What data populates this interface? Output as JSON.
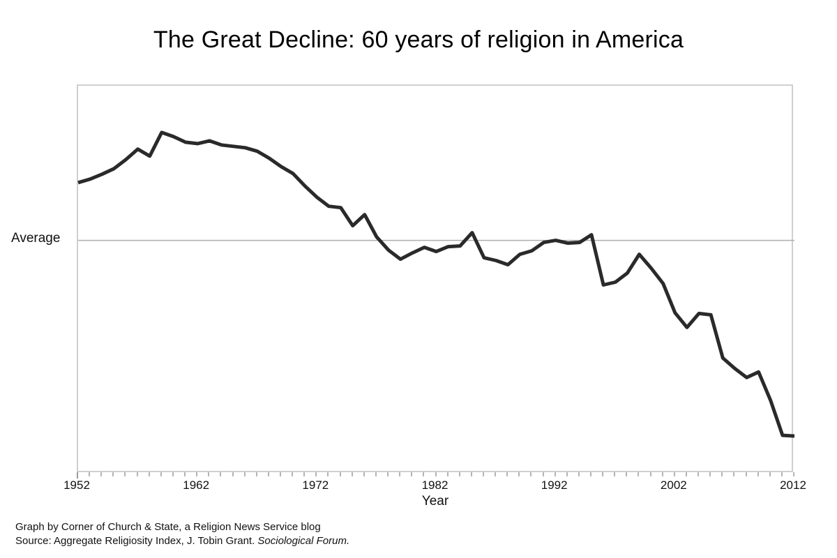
{
  "title": "The Great Decline: 60 years of religion in America",
  "axis": {
    "x_title": "Year",
    "average_label": "Average"
  },
  "footer": {
    "line1": "Graph by Corner of Church & State, a Religion News Service blog",
    "line2_prefix": "Source: Aggregate Religiosity Index, J. Tobin Grant. ",
    "line2_italic": "Sociological Forum."
  },
  "colors": {
    "line": "#2a2a2a",
    "gridline": "#aeaeae",
    "plot_border": "#cfcfcf",
    "tick": "#b4b4b4"
  },
  "chart_data": {
    "type": "line",
    "title": "The Great Decline: 60 years of religion in America",
    "xlabel": "Year",
    "ylabel": "",
    "annotation": "Average (horizontal reference gridline at value 0)",
    "legend": "none",
    "grid": "single horizontal average line only",
    "xlim": [
      1952,
      2012
    ],
    "ylim": [
      -3.35,
      2.22
    ],
    "x_ticks": [
      1952,
      1962,
      1972,
      1982,
      1992,
      2002,
      2012
    ],
    "minor_ticks_every_years": 1,
    "average_value": 0,
    "series": [
      {
        "name": "Aggregate Religiosity Index (deviation from average)",
        "x": [
          1952,
          1953,
          1954,
          1955,
          1956,
          1957,
          1958,
          1959,
          1960,
          1961,
          1962,
          1963,
          1964,
          1965,
          1966,
          1967,
          1968,
          1969,
          1970,
          1971,
          1972,
          1973,
          1974,
          1975,
          1976,
          1977,
          1978,
          1979,
          1980,
          1981,
          1982,
          1983,
          1984,
          1985,
          1986,
          1987,
          1988,
          1989,
          1990,
          1991,
          1992,
          1993,
          1994,
          1995,
          1996,
          1997,
          1998,
          1999,
          2000,
          2001,
          2002,
          2003,
          2004,
          2005,
          2006,
          2007,
          2008,
          2009,
          2010,
          2011,
          2012
        ],
        "values": [
          0.83,
          0.88,
          0.95,
          1.03,
          1.16,
          1.31,
          1.21,
          1.55,
          1.49,
          1.41,
          1.39,
          1.43,
          1.37,
          1.35,
          1.33,
          1.28,
          1.18,
          1.06,
          0.96,
          0.78,
          0.62,
          0.49,
          0.47,
          0.21,
          0.37,
          0.05,
          -0.14,
          -0.27,
          -0.18,
          -0.1,
          -0.16,
          -0.09,
          -0.08,
          0.11,
          -0.25,
          -0.29,
          -0.35,
          -0.2,
          -0.15,
          -0.03,
          0.0,
          -0.04,
          -0.03,
          0.08,
          -0.64,
          -0.6,
          -0.47,
          -0.2,
          -0.4,
          -0.62,
          -1.04,
          -1.25,
          -1.05,
          -1.07,
          -1.69,
          -1.84,
          -1.97,
          -1.89,
          -2.3,
          -2.8,
          -2.81
        ]
      }
    ]
  }
}
